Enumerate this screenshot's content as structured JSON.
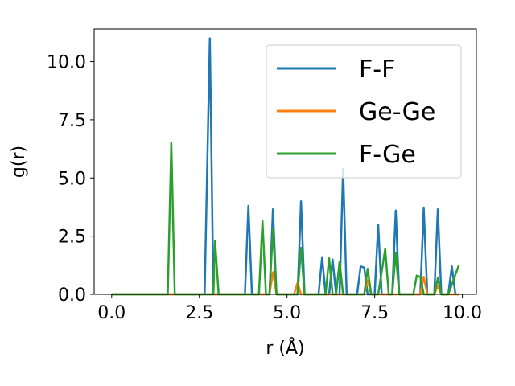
{
  "chart_data": {
    "type": "line",
    "xlabel": "r (Å)",
    "ylabel": "g(r)",
    "xlim": [
      -0.5,
      10.4
    ],
    "ylim": [
      0,
      11.4
    ],
    "xticks": [
      0.0,
      2.5,
      5.0,
      7.5,
      10.0
    ],
    "xtick_labels": [
      "0.0",
      "2.5",
      "5.0",
      "7.5",
      "10.0"
    ],
    "yticks": [
      0.0,
      2.5,
      5.0,
      7.5,
      10.0
    ],
    "ytick_labels": [
      "0.0",
      "2.5",
      "5.0",
      "7.5",
      "10.0"
    ],
    "grid": false,
    "legend_position": "top-right",
    "series": [
      {
        "name": "F-F",
        "color": "#1f77b4",
        "points": [
          [
            0,
            0
          ],
          [
            2.65,
            0
          ],
          [
            2.8,
            11.0
          ],
          [
            2.9,
            0
          ],
          [
            3.8,
            0
          ],
          [
            3.9,
            3.8
          ],
          [
            4.0,
            0
          ],
          [
            4.5,
            0
          ],
          [
            4.6,
            3.65
          ],
          [
            4.7,
            0
          ],
          [
            5.3,
            0
          ],
          [
            5.4,
            4.0
          ],
          [
            5.5,
            0
          ],
          [
            5.9,
            0
          ],
          [
            6.0,
            1.6
          ],
          [
            6.1,
            0
          ],
          [
            6.2,
            0
          ],
          [
            6.3,
            1.5
          ],
          [
            6.4,
            0
          ],
          [
            6.5,
            0
          ],
          [
            6.6,
            5.4
          ],
          [
            6.7,
            0
          ],
          [
            7.0,
            0
          ],
          [
            7.1,
            1.2
          ],
          [
            7.2,
            1.15
          ],
          [
            7.3,
            0
          ],
          [
            7.5,
            0
          ],
          [
            7.6,
            3.0
          ],
          [
            7.7,
            0
          ],
          [
            8.0,
            0
          ],
          [
            8.1,
            3.6
          ],
          [
            8.2,
            0
          ],
          [
            8.8,
            0
          ],
          [
            8.9,
            3.7
          ],
          [
            9.0,
            0
          ],
          [
            9.2,
            0
          ],
          [
            9.3,
            3.65
          ],
          [
            9.4,
            0
          ],
          [
            9.6,
            0
          ],
          [
            9.7,
            1.2
          ],
          [
            9.8,
            0
          ],
          [
            9.9,
            0
          ]
        ]
      },
      {
        "name": "Ge-Ge",
        "color": "#ff7f0e",
        "points": [
          [
            0,
            0
          ],
          [
            4.5,
            0
          ],
          [
            4.6,
            0.95
          ],
          [
            4.7,
            0
          ],
          [
            5.2,
            0
          ],
          [
            5.3,
            0.5
          ],
          [
            5.4,
            0
          ],
          [
            7.2,
            0
          ],
          [
            7.3,
            0.6
          ],
          [
            7.4,
            0
          ],
          [
            8.8,
            0
          ],
          [
            8.9,
            0.75
          ],
          [
            9.0,
            0
          ],
          [
            9.2,
            0
          ],
          [
            9.3,
            0.35
          ],
          [
            9.4,
            0
          ],
          [
            9.9,
            0
          ]
        ]
      },
      {
        "name": "F-Ge",
        "color": "#2ca02c",
        "points": [
          [
            0,
            0
          ],
          [
            1.6,
            0
          ],
          [
            1.7,
            6.5
          ],
          [
            1.8,
            0
          ],
          [
            2.9,
            0
          ],
          [
            2.95,
            2.3
          ],
          [
            3.05,
            0
          ],
          [
            4.2,
            0
          ],
          [
            4.3,
            3.15
          ],
          [
            4.4,
            0
          ],
          [
            4.5,
            0
          ],
          [
            4.6,
            2.8
          ],
          [
            4.7,
            0
          ],
          [
            5.3,
            0
          ],
          [
            5.4,
            2.0
          ],
          [
            5.5,
            0
          ],
          [
            6.1,
            0
          ],
          [
            6.2,
            1.55
          ],
          [
            6.3,
            0
          ],
          [
            6.4,
            0
          ],
          [
            6.5,
            1.4
          ],
          [
            6.6,
            0
          ],
          [
            7.2,
            0
          ],
          [
            7.3,
            1.1
          ],
          [
            7.4,
            0
          ],
          [
            7.6,
            0
          ],
          [
            7.8,
            1.95
          ],
          [
            7.9,
            0
          ],
          [
            8.0,
            0
          ],
          [
            8.1,
            1.8
          ],
          [
            8.2,
            0
          ],
          [
            8.6,
            0
          ],
          [
            8.7,
            0.8
          ],
          [
            8.8,
            0.75
          ],
          [
            8.9,
            0
          ],
          [
            9.2,
            0
          ],
          [
            9.3,
            0.7
          ],
          [
            9.4,
            0
          ],
          [
            9.6,
            0
          ],
          [
            9.9,
            1.25
          ]
        ]
      }
    ]
  }
}
